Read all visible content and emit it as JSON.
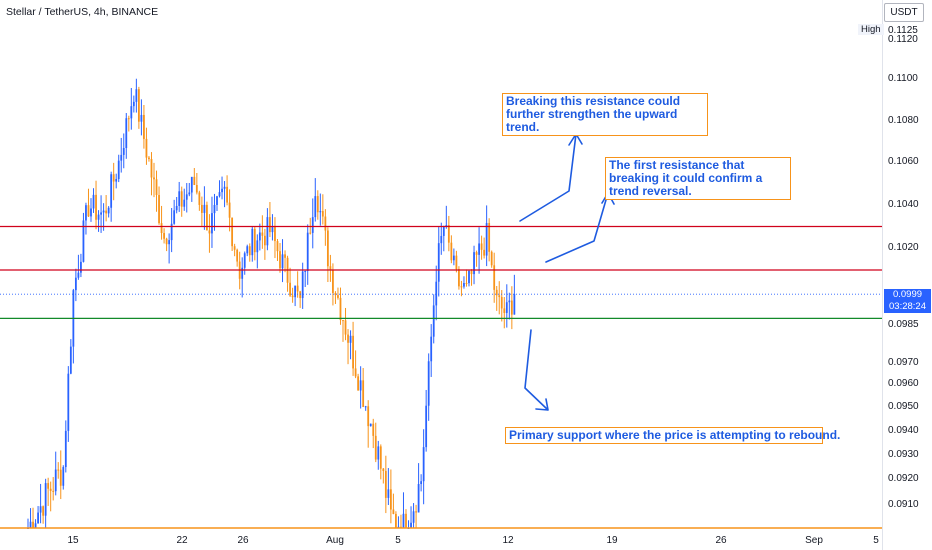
{
  "header": {
    "title": "Stellar / TetherUS, 4h, BINANCE"
  },
  "axis": {
    "currency": "USDT",
    "high_label": "High",
    "y_ticks": [
      "0.1125",
      "0.1120",
      "0.1100",
      "0.1080",
      "0.1060",
      "0.1040",
      "0.1020",
      "0.0985",
      "0.0970",
      "0.0960",
      "0.0950",
      "0.0940",
      "0.0930",
      "0.0920",
      "0.0910"
    ],
    "x_ticks": [
      "15",
      "22",
      "26",
      "Aug",
      "5",
      "12",
      "19",
      "26",
      "Sep",
      "5"
    ],
    "last_price": "0.0999",
    "countdown": "03:28:24"
  },
  "annotations": {
    "resistance_2": "Breaking this resistance could further strengthen the upward trend.",
    "resistance_1": "The first resistance that breaking it could confirm a trend reversal.",
    "support": "Primary support where the price is attempting to rebound."
  },
  "colors": {
    "up": "#2962ff",
    "down": "#f7931a",
    "resistance": "#d0021b",
    "support": "#128a2a",
    "annotation": "#1e5be0"
  },
  "chart_data": {
    "type": "candlestick",
    "title": "Stellar / TetherUS, 4h, BINANCE",
    "ylim": [
      0.09,
      0.113
    ],
    "x_tick_labels": [
      "15",
      "22",
      "26",
      "Aug",
      "5",
      "12",
      "19",
      "26",
      "Sep",
      "5"
    ],
    "levels": [
      {
        "name": "resistance",
        "value": 0.103
      },
      {
        "name": "resistance",
        "value": 0.101
      },
      {
        "name": "support",
        "value": 0.0988
      }
    ],
    "last_price": 0.0999,
    "anchors": [
      {
        "t": 0,
        "c": 0.09
      },
      {
        "t": 8,
        "c": 0.0915
      },
      {
        "t": 14,
        "c": 0.0925
      },
      {
        "t": 18,
        "c": 0.1
      },
      {
        "t": 24,
        "c": 0.104
      },
      {
        "t": 30,
        "c": 0.1035
      },
      {
        "t": 36,
        "c": 0.106
      },
      {
        "t": 42,
        "c": 0.1095
      },
      {
        "t": 48,
        "c": 0.106
      },
      {
        "t": 54,
        "c": 0.1025
      },
      {
        "t": 60,
        "c": 0.104
      },
      {
        "t": 66,
        "c": 0.105
      },
      {
        "t": 72,
        "c": 0.103
      },
      {
        "t": 78,
        "c": 0.1045
      },
      {
        "t": 84,
        "c": 0.101
      },
      {
        "t": 90,
        "c": 0.1025
      },
      {
        "t": 96,
        "c": 0.1028
      },
      {
        "t": 102,
        "c": 0.101
      },
      {
        "t": 108,
        "c": 0.0995
      },
      {
        "t": 114,
        "c": 0.105
      },
      {
        "t": 120,
        "c": 0.101
      },
      {
        "t": 126,
        "c": 0.0985
      },
      {
        "t": 132,
        "c": 0.096
      },
      {
        "t": 138,
        "c": 0.0935
      },
      {
        "t": 144,
        "c": 0.0905
      },
      {
        "t": 150,
        "c": 0.09
      },
      {
        "t": 156,
        "c": 0.092
      },
      {
        "t": 162,
        "c": 0.101
      },
      {
        "t": 165,
        "c": 0.103
      },
      {
        "t": 170,
        "c": 0.1005
      },
      {
        "t": 174,
        "c": 0.1
      },
      {
        "t": 178,
        "c": 0.1015
      },
      {
        "t": 182,
        "c": 0.1025
      },
      {
        "t": 186,
        "c": 0.0995
      },
      {
        "t": 190,
        "c": 0.099
      },
      {
        "t": 193,
        "c": 0.0999
      }
    ]
  }
}
